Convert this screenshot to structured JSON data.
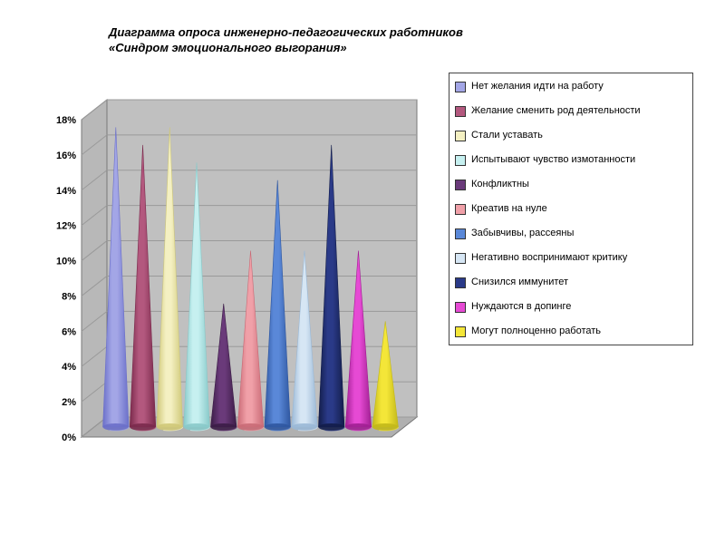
{
  "title_line1": "Диаграмма опроса инженерно-педагогических работников",
  "title_line2": "«Синдром эмоционального выгорания»",
  "chart": {
    "type": "3d-cone-column",
    "ylabel_format_suffix": "%",
    "ylim": [
      0,
      18
    ],
    "ytick_step": 2,
    "yticks": [
      "0%",
      "2%",
      "4%",
      "6%",
      "8%",
      "10%",
      "12%",
      "14%",
      "16%",
      "18%"
    ],
    "grid_color": "#9a9a9a",
    "plot_background_color": "#c0c0c0",
    "floor_color": "#b0b0b0",
    "axis_font_size": 11,
    "axis_font_weight": "bold",
    "series": [
      {
        "label": "Нет желания идти на работу",
        "value": 17,
        "color_light": "#a3a6e6",
        "color_dark": "#6a6fc9"
      },
      {
        "label": "Желание сменить род деятельности",
        "value": 16,
        "color_light": "#b3587e",
        "color_dark": "#7a2a4c"
      },
      {
        "label": "Стали уставать",
        "value": 17,
        "color_light": "#f4f0c2",
        "color_dark": "#cfc878"
      },
      {
        "label": "Испытывают чувство измотанности",
        "value": 15,
        "color_light": "#c6f0f0",
        "color_dark": "#88c9c9"
      },
      {
        "label": "Конфликтны",
        "value": 7,
        "color_light": "#6a3a7a",
        "color_dark": "#3c1d47"
      },
      {
        "label": "Креатив на нуле",
        "value": 10,
        "color_light": "#f0a0a8",
        "color_dark": "#c96a75"
      },
      {
        "label": "Забывчивы, рассеяны",
        "value": 14,
        "color_light": "#5a88d8",
        "color_dark": "#2f57a0"
      },
      {
        "label": "Негативно воспринимают критику",
        "value": 10,
        "color_light": "#d6e6f4",
        "color_dark": "#9ab8d6"
      },
      {
        "label": "Снизился иммунитет",
        "value": 16,
        "color_light": "#2a3a88",
        "color_dark": "#131d4a"
      },
      {
        "label": "Нуждаются в допинге",
        "value": 10,
        "color_light": "#e64ad4",
        "color_dark": "#a01f92"
      },
      {
        "label": "Могут полноценно работать",
        "value": 6,
        "color_light": "#f4e638",
        "color_dark": "#c2b81a"
      }
    ]
  },
  "legend_font_size": 11,
  "legend_border_color": "#444444"
}
